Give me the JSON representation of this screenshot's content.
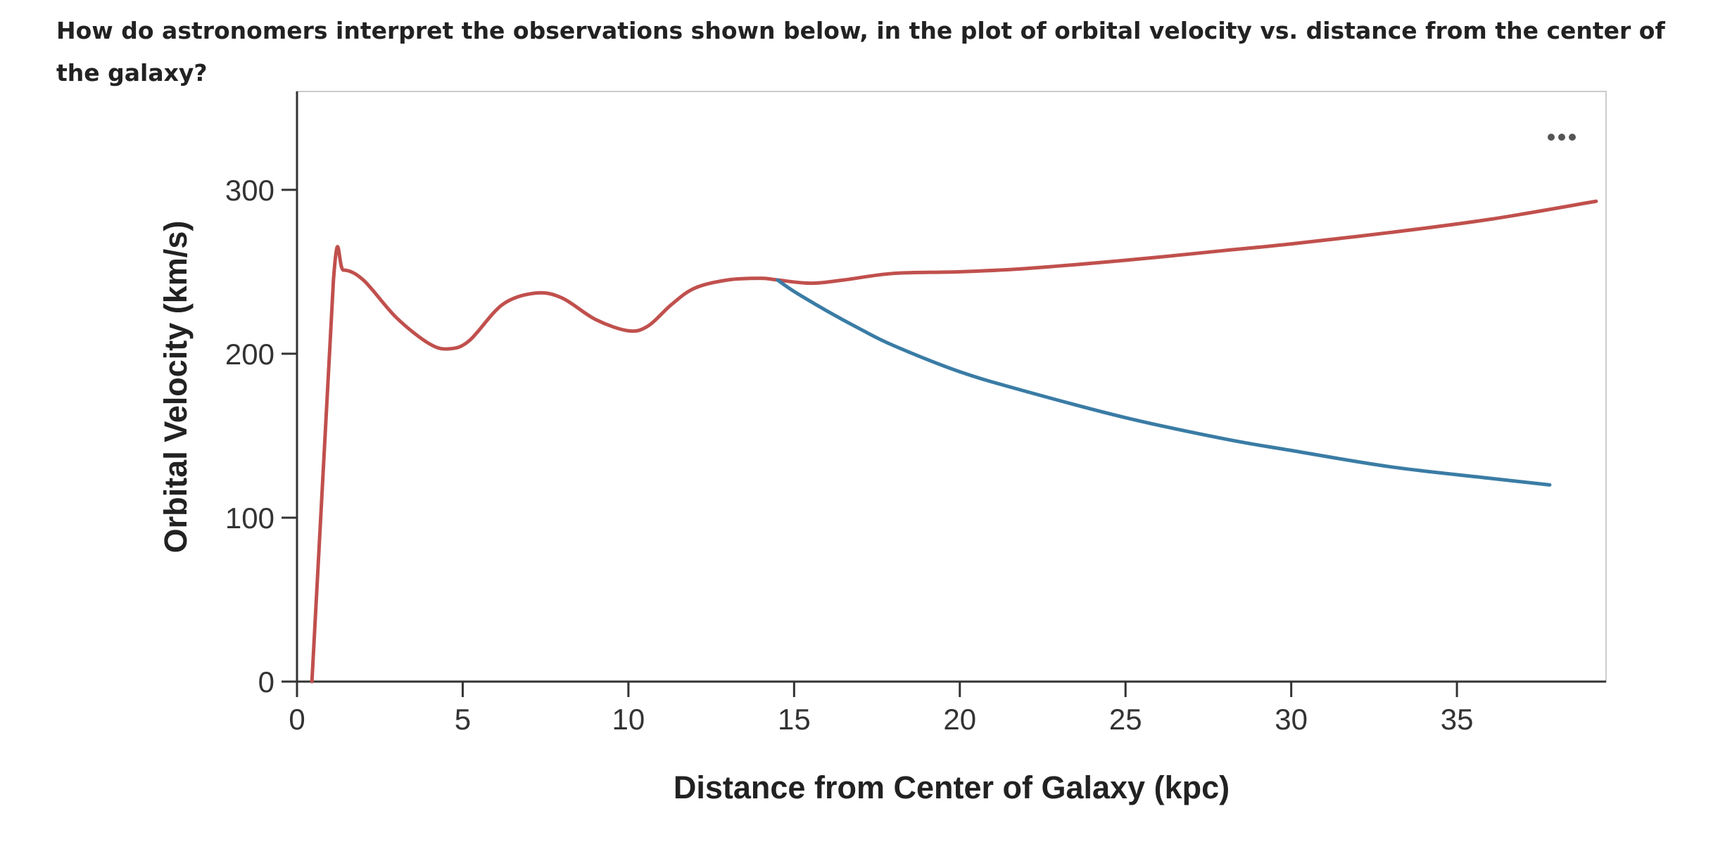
{
  "question": "How do astronomers interpret the observations shown below, in the plot of orbital velocity vs. distance from the center of the galaxy?",
  "menu_icon": "more-horizontal-icon",
  "chart_data": {
    "type": "line",
    "title": "",
    "xlabel": "Distance from Center of Galaxy (kpc)",
    "ylabel": "Orbital Velocity (km/s)",
    "xlim": [
      0,
      39.5
    ],
    "ylim": [
      0,
      360
    ],
    "xticks": [
      0,
      5,
      10,
      15,
      20,
      25,
      30,
      35
    ],
    "yticks": [
      0,
      100,
      200,
      300
    ],
    "grid": false,
    "series": [
      {
        "color": "#c0504d",
        "x": [
          0.45,
          1.1,
          1.4,
          2,
          3,
          4,
          4.6,
          5.2,
          6.2,
          7.2,
          8,
          9,
          10,
          10.6,
          11.3,
          12,
          13,
          14,
          14.5,
          15.5,
          16.5,
          18,
          20,
          22,
          25,
          28,
          30,
          33,
          36,
          39.2
        ],
        "y": [
          0,
          245,
          251,
          245,
          222,
          206,
          203,
          208,
          230,
          237,
          234,
          221,
          214,
          217,
          230,
          240,
          245,
          246,
          245,
          243,
          245,
          249,
          250,
          252,
          257,
          263,
          267,
          274,
          282,
          293
        ]
      },
      {
        "color": "#3a7ca5",
        "x": [
          14.5,
          15,
          16,
          17,
          18,
          20,
          22,
          25,
          28,
          30,
          33,
          36,
          37.8
        ],
        "y": [
          245,
          238,
          226,
          215,
          205,
          189,
          177,
          161,
          148,
          141,
          131,
          124,
          120
        ]
      }
    ]
  }
}
